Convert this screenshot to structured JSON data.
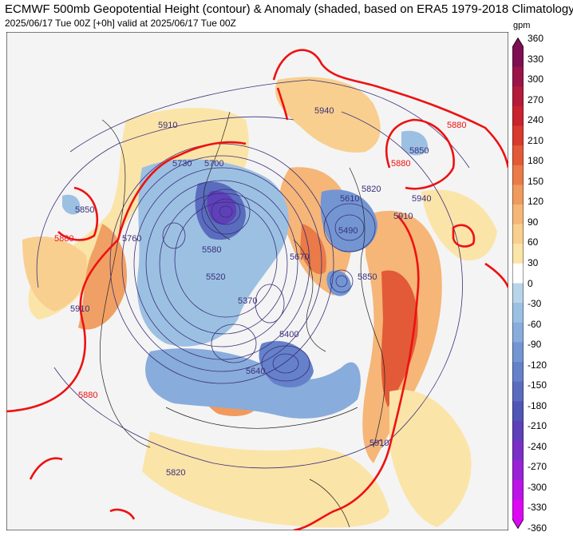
{
  "title": "ECMWF 500mb Geopotential Height (contour) & Anomaly (shaded, based on ERA5 1979-2018 Climatology)",
  "subtitle": "2025/06/17 Tue 00Z [+0h] valid at 2025/06/17 Tue 00Z",
  "colorbar": {
    "unit": "gpm",
    "ticks": [
      "360",
      "330",
      "300",
      "270",
      "240",
      "210",
      "180",
      "150",
      "120",
      "90",
      "60",
      "30",
      "0",
      "-30",
      "-60",
      "-90",
      "-120",
      "-150",
      "-180",
      "-210",
      "-240",
      "-270",
      "-300",
      "-330",
      "-360"
    ],
    "colors": [
      "#7d0f52",
      "#9a1448",
      "#b31b3b",
      "#c8232f",
      "#d93a2e",
      "#e35a38",
      "#ea7a48",
      "#f09a5e",
      "#f5b678",
      "#f8cf8e",
      "#fbe4a8",
      "#ffffff",
      "#ffffff",
      "#b7d4ea",
      "#9cc0e2",
      "#88acdb",
      "#7396d2",
      "#6581c9",
      "#5a6cbe",
      "#5056b5",
      "#5e40b8",
      "#7a30c6",
      "#9a22d6",
      "#bb14e6",
      "#dc08f4"
    ]
  },
  "contour_labels": [
    "5910",
    "5940",
    "5880",
    "5850",
    "5730",
    "5700",
    "5760",
    "5580",
    "5670",
    "5610",
    "5520",
    "5490",
    "5400",
    "5370",
    "5640",
    "5880",
    "5910",
    "5820",
    "5850",
    "5940",
    "5910",
    "5880",
    "5850",
    "5880",
    "5820",
    "5910"
  ]
}
